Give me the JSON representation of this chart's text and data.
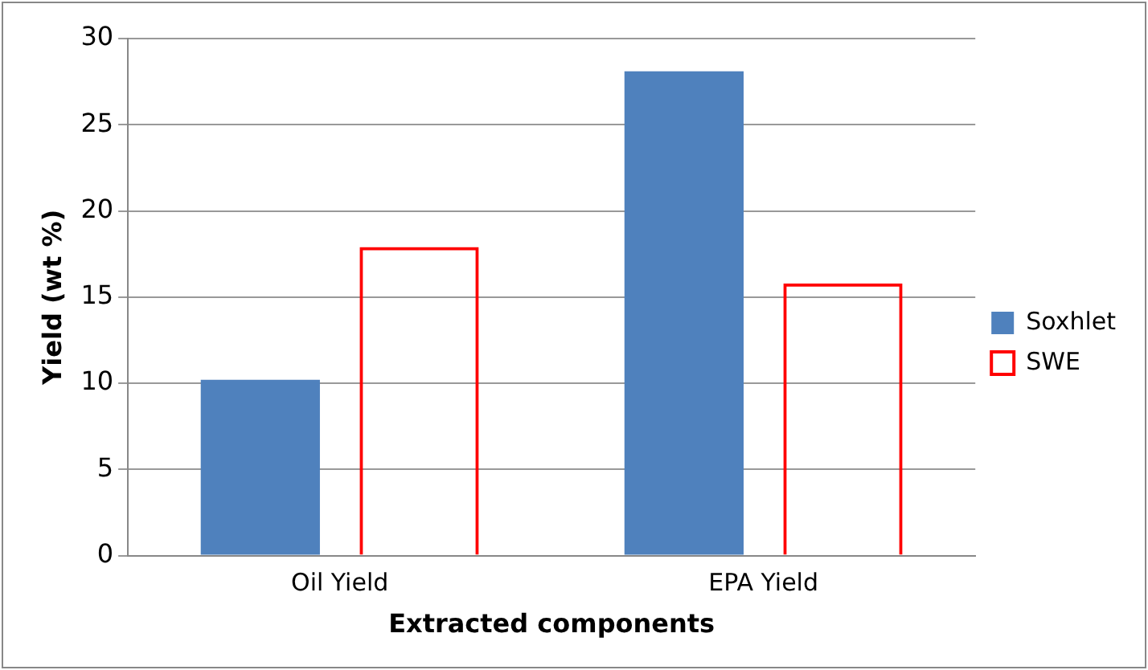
{
  "chart_data": {
    "type": "bar",
    "xlabel": "Extracted components",
    "ylabel": "Yield (wt %)",
    "categories": [
      "Oil Yield",
      "EPA Yield"
    ],
    "series": [
      {
        "name": "Soxhlet",
        "color": "#4f81bd",
        "values": [
          10.2,
          28.1
        ]
      },
      {
        "name": "SWE",
        "color": "#ff0000",
        "values": [
          17.9,
          15.8
        ]
      }
    ],
    "ylim": [
      0,
      30
    ],
    "yticks": [
      0,
      5,
      10,
      15,
      20,
      25,
      30
    ],
    "grid": "y",
    "legend": "right"
  }
}
